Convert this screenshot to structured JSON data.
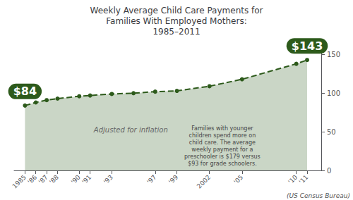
{
  "chart_data": {
    "type": "area",
    "title": "Weekly Average Child Care Payments for\nFamilies With Employed Mothers:\n1985–2011",
    "x": [
      1985,
      1986,
      1987,
      1988,
      1990,
      1991,
      1993,
      1995,
      1997,
      1999,
      2002,
      2005,
      2010,
      2011
    ],
    "values": [
      84,
      88,
      91,
      93,
      96,
      97,
      99,
      100,
      102,
      103,
      109,
      118,
      138,
      143
    ],
    "value_labels": [
      "$84",
      null,
      null,
      null,
      null,
      null,
      null,
      null,
      null,
      null,
      null,
      null,
      null,
      "$143"
    ],
    "data_labels": true,
    "color": "#2D5A1B",
    "marker": "circle",
    "line_style": "dashed",
    "xlim": [
      1984.0,
      2012.3
    ],
    "xticks": [
      1985,
      {
        "value": 1986,
        "label": "'86"
      },
      {
        "value": 1987,
        "label": "'87"
      },
      {
        "value": 1988,
        "label": "'88"
      },
      {
        "value": 1990,
        "label": "'90"
      },
      {
        "value": 1991,
        "label": "'91"
      },
      {
        "value": 1993,
        "label": "'93"
      },
      {
        "value": 1997,
        "label": "'97"
      },
      {
        "value": 1999,
        "label": "'99"
      },
      2002,
      {
        "value": 2005,
        "label": "'05"
      },
      {
        "value": 2010,
        "label": "'10"
      },
      {
        "value": 2011,
        "label": "'11"
      }
    ],
    "ylim": [
      0,
      155
    ],
    "yticks": [
      0,
      50,
      100,
      150
    ],
    "grid": false,
    "annotations": [
      "Adjusted for inflation",
      "Families with younger\nchildren spend more on\nchild care. The average\nweekly payment for a\npreschooler is $179 versus\n$93 for grade schoolers.",
      "(US Census Bureau)"
    ]
  }
}
